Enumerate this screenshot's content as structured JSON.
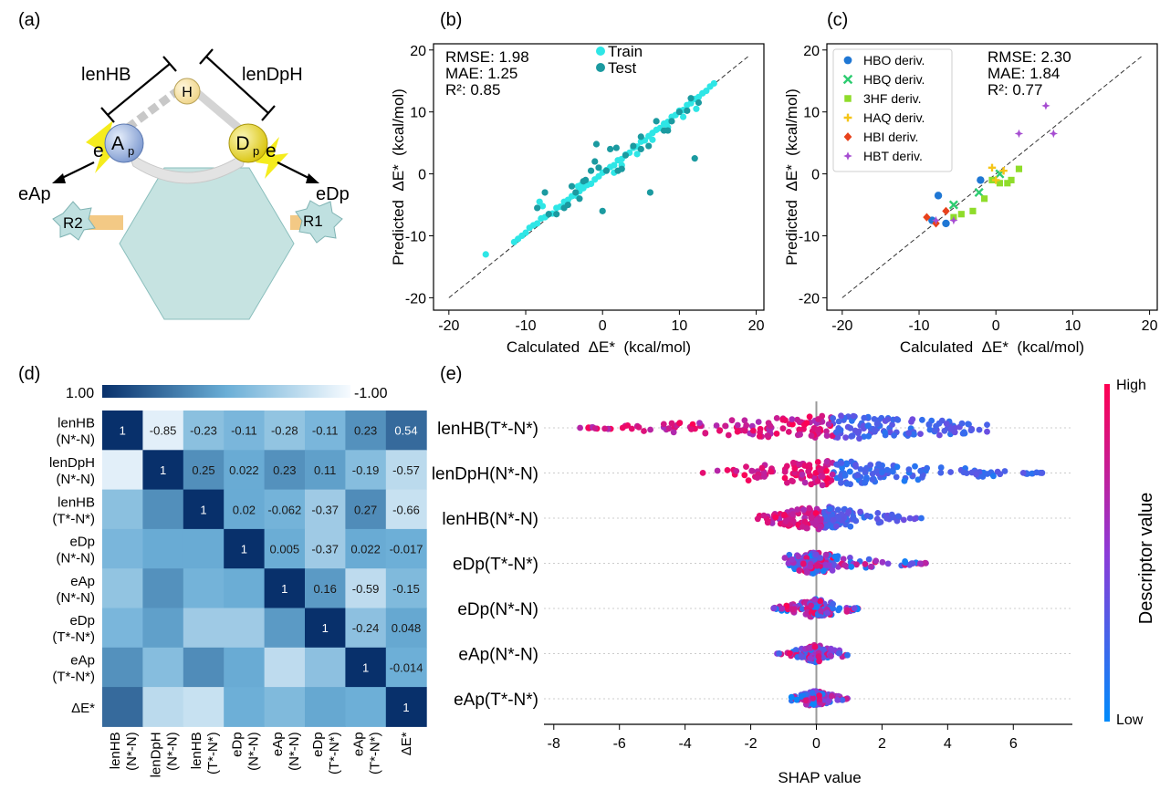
{
  "panel_labels": {
    "a": "(a)",
    "b": "(b)",
    "c": "(c)",
    "d": "(d)",
    "e": "(e)"
  },
  "schematic": {
    "lenHB": "lenHB",
    "lenDpH": "lenDpH",
    "H": "H",
    "Ap_main": "A",
    "Ap_sub": "p",
    "Dp_main": "D",
    "Dp_sub": "p",
    "e_left": "e",
    "e_right": "e",
    "eAp": "eAp",
    "eDp": "eDp",
    "R1": "R1",
    "R2": "R2",
    "colors": {
      "hexagon": "#c6e3e1",
      "ring": "#e6e6e6",
      "bar": "#f3c985",
      "star": "#bfe0e0",
      "bolt": "#f5ec1d",
      "h_atom": "#f6e3a8",
      "a_atom": "#8fa9d8",
      "d_atom": "#e6d61c"
    }
  },
  "chart_data": [
    {
      "type": "scatter",
      "panel": "b",
      "xlabel": "Calculated  ΔE*  (kcal/mol)",
      "ylabel": "Predicted  ΔE*  (kcal/mol)",
      "xlim": [
        -22,
        21
      ],
      "ylim": [
        -22,
        21
      ],
      "xticks": [
        -20,
        -10,
        0,
        10,
        20
      ],
      "yticks": [
        -20,
        -10,
        0,
        10,
        20
      ],
      "stats": [
        "RMSE: 1.98",
        "MAE: 1.25",
        "R²: 0.85"
      ],
      "legend": [
        "Train",
        "Test"
      ],
      "colors": {
        "Train": "#2ee6e6",
        "Test": "#1b9aa0"
      },
      "series": [
        {
          "name": "Train",
          "x": [
            -15.2,
            -11.5,
            -11,
            -10.5,
            -10,
            -9.5,
            -9,
            -8.5,
            -8,
            -7.5,
            -7,
            -6.5,
            -6,
            -5.5,
            -5,
            -4.5,
            -4,
            -3.5,
            -3,
            -2.5,
            -2,
            -1.5,
            -1,
            -0.5,
            0,
            0.5,
            1,
            1.5,
            2,
            2.5,
            3,
            3.5,
            4,
            4.5,
            5,
            5.5,
            6,
            6.5,
            7,
            7.5,
            8,
            8.5,
            9,
            9.5,
            10,
            10.5,
            11,
            11.5,
            12,
            12.5,
            13,
            13.5,
            14,
            14.5,
            -8.2,
            -7.8,
            -3.2,
            -2.8,
            1.5,
            2.5,
            4.5,
            6.5,
            8.5,
            10.5,
            12.2
          ],
          "y": [
            -13,
            -11,
            -10.5,
            -10,
            -9.5,
            -8.7,
            -8.3,
            -8,
            -7.2,
            -7,
            -6.5,
            -6.4,
            -5.5,
            -5.3,
            -4.5,
            -4.2,
            -3.6,
            -3.5,
            -2.8,
            -2.3,
            -1.8,
            -1.6,
            -0.9,
            -0.4,
            0.2,
            0.6,
            1.1,
            1.4,
            2.2,
            2.4,
            3.1,
            3.4,
            4.2,
            4.4,
            5.2,
            5.4,
            6.1,
            6.6,
            7.1,
            7.4,
            8.1,
            8.4,
            9.2,
            9.5,
            10.2,
            10.3,
            11.1,
            11.4,
            12.1,
            12.4,
            13,
            13.4,
            14.1,
            14.6,
            -4.5,
            -5.2,
            -2,
            -1.8,
            0.2,
            1.4,
            3.2,
            5.5,
            7.5,
            9.2,
            10.5
          ]
        },
        {
          "name": "Test",
          "x": [
            -8.5,
            -7,
            -6,
            -5,
            -4,
            -3,
            -2.2,
            -1.5,
            -0.5,
            0.5,
            1,
            2,
            3,
            4,
            5,
            6,
            7,
            8,
            9,
            10,
            11,
            12,
            -7.5,
            -4.5,
            -3.5,
            -0.8,
            0,
            2.5,
            5,
            8.5,
            11.5,
            12.5,
            1.8,
            -2.5,
            -1,
            6.2
          ],
          "y": [
            -5.5,
            -6.5,
            -6.5,
            -5.5,
            -2,
            -4,
            -1,
            0.5,
            1,
            0.5,
            4,
            0.5,
            3,
            4.5,
            6,
            4.5,
            8.5,
            7,
            8.5,
            10,
            10.2,
            2.5,
            -3,
            -5,
            -3,
            4.8,
            -6,
            0.8,
            4,
            7,
            12.2,
            11.5,
            4.2,
            -1.2,
            2,
            -3
          ]
        }
      ]
    },
    {
      "type": "scatter",
      "panel": "c",
      "xlabel": "Calculated  ΔE*  (kcal/mol)",
      "ylabel": "Predicted  ΔE*  (kcal/mol)",
      "xlim": [
        -22,
        21
      ],
      "ylim": [
        -22,
        21
      ],
      "xticks": [
        -20,
        -10,
        0,
        10,
        20
      ],
      "yticks": [
        -20,
        -10,
        0,
        10,
        20
      ],
      "stats": [
        "RMSE: 2.30",
        "MAE: 1.84",
        "R²: 0.77"
      ],
      "series": [
        {
          "name": "HBO deriv.",
          "marker": "circle",
          "color": "#1f77d4",
          "x": [
            -7.5,
            -8.3,
            -6.5,
            -2
          ],
          "y": [
            -3.5,
            -7.5,
            -8,
            -1
          ]
        },
        {
          "name": "HBQ deriv.",
          "marker": "x",
          "color": "#2ecc71",
          "x": [
            -5.5,
            -2.2,
            0.5
          ],
          "y": [
            -5,
            -3,
            0
          ]
        },
        {
          "name": "3HF deriv.",
          "marker": "square",
          "color": "#8fdc2a",
          "x": [
            -5.5,
            -4.5,
            -3,
            -1.5,
            -0.5,
            0.5,
            1.5,
            2,
            3
          ],
          "y": [
            -7,
            -6.5,
            -6,
            -4,
            -1,
            -1.5,
            -1.5,
            -1,
            0.8
          ]
        },
        {
          "name": "HAQ deriv.",
          "marker": "plus",
          "color": "#f5c518",
          "x": [
            0,
            1,
            -0.5
          ],
          "y": [
            -1,
            0.5,
            1
          ]
        },
        {
          "name": "HBI deriv.",
          "marker": "diamond",
          "color": "#e8421c",
          "x": [
            -9,
            -7.8,
            -6.5
          ],
          "y": [
            -7,
            -8,
            -6
          ]
        },
        {
          "name": "HBT deriv.",
          "marker": "star",
          "color": "#a64dd1",
          "x": [
            -5.5,
            6.5,
            7.5,
            3,
            -7.8
          ],
          "y": [
            -7.5,
            11,
            6.5,
            6.5,
            -7.5
          ]
        }
      ]
    },
    {
      "type": "heatmap",
      "panel": "d",
      "colorbar": {
        "max_label": "1.00",
        "min_label": "-1.00"
      },
      "row_labels": [
        [
          "lenHB",
          "(N*-N)"
        ],
        [
          "lenDpH",
          "(N*-N)"
        ],
        [
          "lenHB",
          "(T*-N*)"
        ],
        [
          "eDp",
          "(N*-N)"
        ],
        [
          "eAp",
          "(N*-N)"
        ],
        [
          "eDp",
          "(T*-N*)"
        ],
        [
          "eAp",
          "(T*-N*)"
        ],
        [
          "ΔE*"
        ]
      ],
      "col_labels": [
        [
          "lenHB",
          "(N*-N)"
        ],
        [
          "lenDpH",
          "(N*-N)"
        ],
        [
          "lenHB",
          "(T*-N*)"
        ],
        [
          "eDp",
          "(N*-N)"
        ],
        [
          "eAp",
          "(N*-N)"
        ],
        [
          "eDp",
          "(T*-N*)"
        ],
        [
          "eAp",
          "(T*-N*)"
        ],
        [
          "ΔE*"
        ]
      ],
      "values": [
        [
          1,
          -0.85,
          -0.23,
          -0.11,
          -0.28,
          -0.11,
          0.23,
          0.54
        ],
        [
          -0.85,
          1,
          0.25,
          0.022,
          0.23,
          0.11,
          -0.19,
          -0.57
        ],
        [
          -0.23,
          0.25,
          1,
          0.02,
          -0.062,
          -0.37,
          0.27,
          -0.66
        ],
        [
          -0.11,
          0.022,
          0.02,
          1,
          0.005,
          -0.37,
          0.022,
          -0.017
        ],
        [
          -0.28,
          0.23,
          -0.062,
          0.005,
          1,
          0.16,
          -0.59,
          -0.15
        ],
        [
          -0.11,
          0.11,
          -0.37,
          -0.37,
          0.16,
          1,
          -0.24,
          0.048
        ],
        [
          0.23,
          -0.19,
          0.27,
          0.022,
          -0.59,
          -0.24,
          1,
          -0.014
        ],
        [
          0.54,
          -0.57,
          -0.66,
          -0.017,
          -0.15,
          0.048,
          -0.014,
          1
        ]
      ],
      "labels_upper": [
        "-0.85",
        "-0.23",
        "-0.11",
        "-0.28",
        "-0.11",
        "0.23",
        "0.54",
        "0.25",
        "0.022",
        "0.23",
        "0.11",
        "-0.19",
        "-0.57",
        "0.02",
        "-0.062",
        "-0.37",
        "0.27",
        "-0.66",
        "0.005",
        "-0.37",
        "0.022",
        "-0.017",
        "0.16",
        "-0.59",
        "-0.15",
        "-0.24",
        "0.048",
        "-0.014"
      ],
      "diag_label": "1"
    },
    {
      "type": "scatter",
      "panel": "e",
      "subtype": "shap-beeswarm",
      "xlabel": "SHAP value",
      "xlim": [
        -8.3,
        7.8
      ],
      "xticks": [
        -8,
        -6,
        -4,
        -2,
        0,
        2,
        4,
        6
      ],
      "colorbar": {
        "title": "Descriptor value",
        "high": "High",
        "low": "Low"
      },
      "features": [
        {
          "name": "lenHB(T*-N*)",
          "min": -7.2,
          "max": 5.2,
          "center": 0.5,
          "spread": 4.0,
          "density": 1.0
        },
        {
          "name": "lenDpH(N*-N)",
          "min": -3.5,
          "max": 7.0,
          "center": 0.5,
          "spread": 2.6,
          "density": 0.9
        },
        {
          "name": "lenHB(N*-N)",
          "min": -1.8,
          "max": 3.2,
          "center": 0.2,
          "spread": 1.2,
          "density": 0.75
        },
        {
          "name": "eDp(T*-N*)",
          "min": -1.0,
          "max": 3.4,
          "center": -0.1,
          "spread": 0.6,
          "density": 0.65
        },
        {
          "name": "eDp(N*-N)",
          "min": -1.4,
          "max": 1.3,
          "center": 0.0,
          "spread": 0.45,
          "density": 0.55
        },
        {
          "name": "eAp(N*-N)",
          "min": -1.2,
          "max": 1.0,
          "center": 0.0,
          "spread": 0.4,
          "density": 0.5
        },
        {
          "name": "eAp(T*-N*)",
          "min": -0.8,
          "max": 1.0,
          "center": 0.0,
          "spread": 0.35,
          "density": 0.45
        }
      ]
    }
  ]
}
